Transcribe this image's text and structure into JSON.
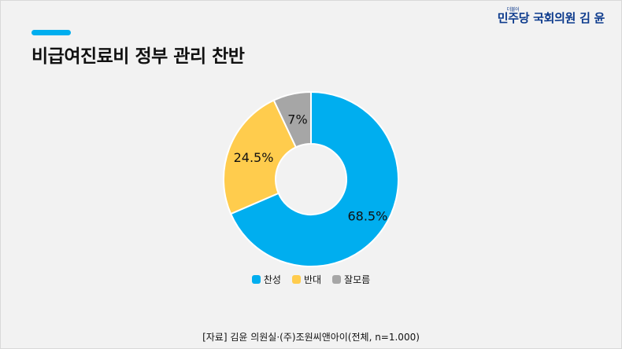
{
  "header": {
    "title": "비급여진료비 정부 관리 찬반",
    "brand_small": "더불어",
    "brand_party": "민주당",
    "brand_member": "국회의원 김 윤"
  },
  "colors": {
    "accent": "#00aeef",
    "brand": "#0c3a8c",
    "series": [
      "#00aeef",
      "#ffcc4d",
      "#a6a6a6"
    ]
  },
  "chart_data": {
    "type": "pie",
    "donut": true,
    "labels": [
      "찬성",
      "반대",
      "잘모름"
    ],
    "values": [
      68.5,
      24.5,
      7
    ],
    "value_labels": [
      "68.5%",
      "24.5%",
      "7%"
    ],
    "legend_position": "bottom"
  },
  "footer": {
    "source": "[자료] 김윤 의원실·(주)조원씨앤아이(전체, n=1.000)"
  }
}
